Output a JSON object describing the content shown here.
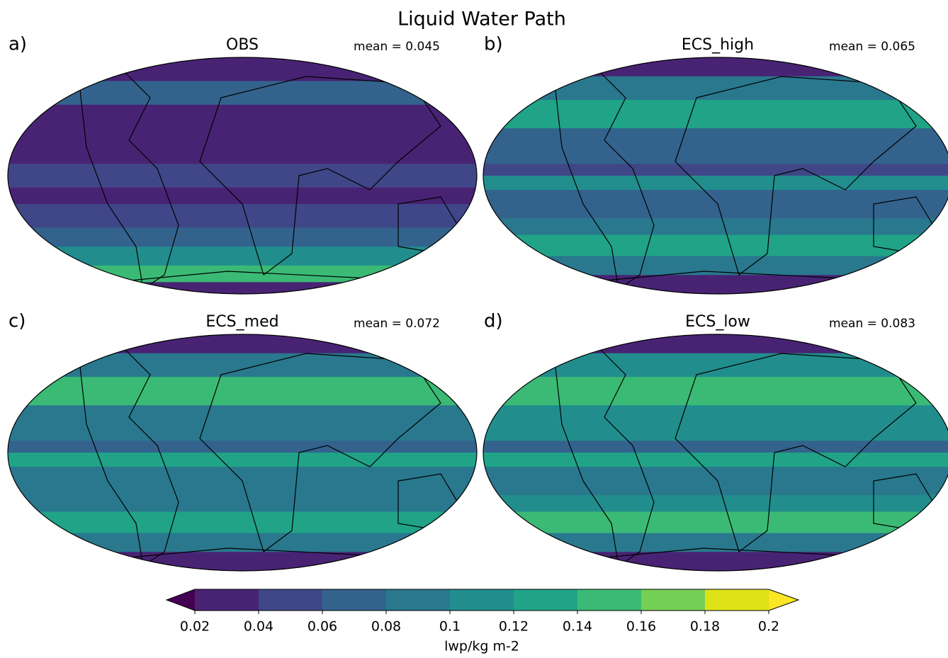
{
  "title": "Liquid Water Path",
  "panels": [
    {
      "letter": "a)",
      "title": "OBS",
      "mean": "mean = 0.045"
    },
    {
      "letter": "b)",
      "title": "ECS_high",
      "mean": "mean = 0.065"
    },
    {
      "letter": "c)",
      "title": "ECS_med",
      "mean": "mean = 0.072"
    },
    {
      "letter": "d)",
      "title": "ECS_low",
      "mean": "mean = 0.083"
    }
  ],
  "colorbar": {
    "ticks": [
      0.02,
      0.04,
      0.06,
      0.08,
      0.1,
      0.12,
      0.14,
      0.16,
      0.18,
      0.2
    ],
    "label": "lwp/kg m-2",
    "colors": [
      "#482374",
      "#3f4788",
      "#33638d",
      "#29788e",
      "#218e8d",
      "#20a386",
      "#3bba75",
      "#74d055",
      "#dde318"
    ],
    "under_color": "#440154",
    "over_color": "#fde725"
  }
}
